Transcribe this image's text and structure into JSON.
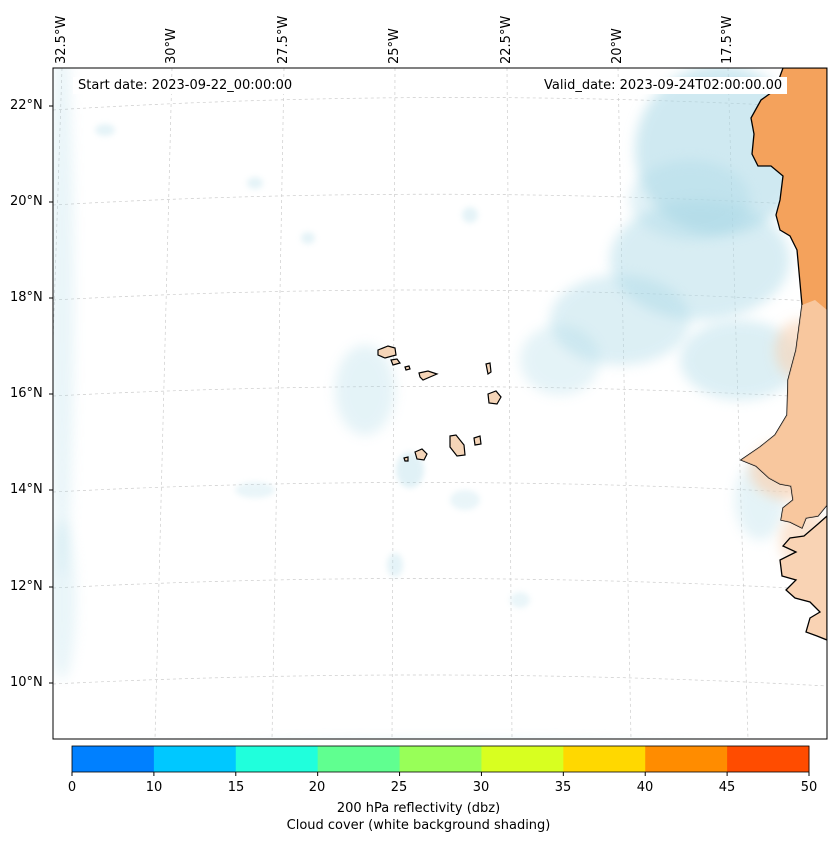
{
  "map": {
    "start_date_text": "Start date: 2023-09-22_00:00:00",
    "valid_date_text": "Valid_date: 2023-09-24T02:00:00.00",
    "lon_labels": [
      "32.5°W",
      "30°W",
      "27.5°W",
      "25°W",
      "22.5°W",
      "20°W",
      "17.5°W"
    ],
    "lat_labels": [
      "22°N",
      "20°N",
      "18°N",
      "16°N",
      "14°N",
      "12°N",
      "10°N"
    ],
    "colors": {
      "land_fill": "#f5d5b8",
      "coast": "#000000",
      "cloud": "#a9d8e6",
      "reflectivity_high": "#f4a25c",
      "reflectivity_low": "#f9d3b4"
    }
  },
  "colorbar": {
    "ticks": [
      "0",
      "10",
      "15",
      "20",
      "25",
      "30",
      "35",
      "40",
      "45",
      "50"
    ],
    "colors": [
      "#0080ff",
      "#00c8ff",
      "#20ffdc",
      "#60ff90",
      "#98ff58",
      "#d8ff20",
      "#ffd800",
      "#ff8c00",
      "#ff4c00"
    ],
    "label1": "200 hPa reflectivity (dbz)",
    "label2": "Cloud cover (white background shading)"
  }
}
